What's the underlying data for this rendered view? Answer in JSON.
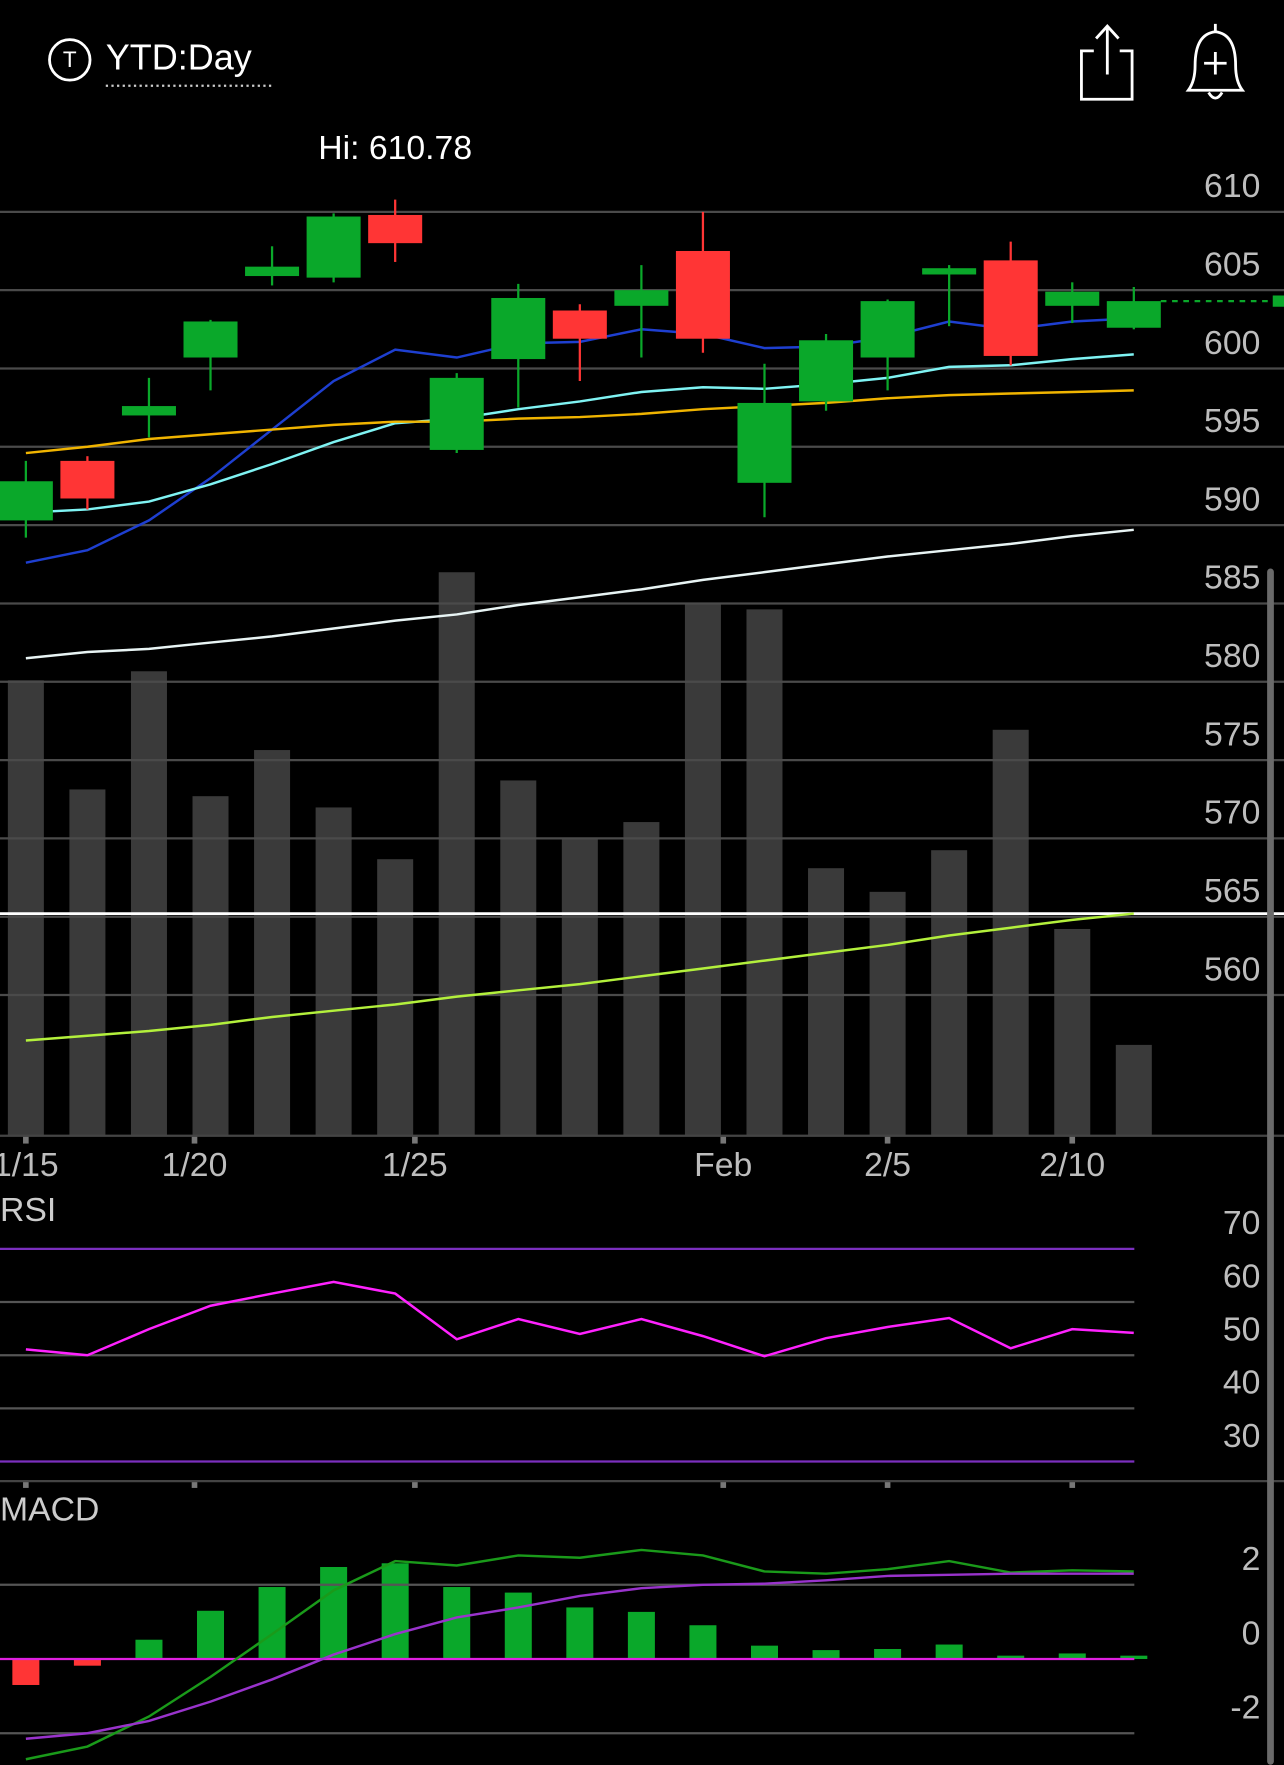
{
  "header": {
    "icon": "T",
    "title": "YTD:Day"
  },
  "chart_data": [
    {
      "type": "candlestick",
      "high_label": "Hi: 610.78",
      "xlim": [
        -0.42,
        20.44
      ],
      "xticks": [
        {
          "value": 0,
          "label": "1/15"
        },
        {
          "value": 2.74,
          "label": "1/20"
        },
        {
          "value": 6.32,
          "label": "1/25"
        },
        {
          "value": 11.33,
          "label": "Feb"
        },
        {
          "value": 14,
          "label": "2/5"
        },
        {
          "value": 17,
          "label": "2/10"
        }
      ],
      "ylim": [
        551,
        613.5
      ],
      "yticks": [
        560,
        565,
        570,
        575,
        580,
        585,
        590,
        595,
        600,
        605,
        610
      ],
      "grid": true,
      "up_color": "#0aa82a",
      "down_color": "#ff3535",
      "candles": {
        "open": [
          590.3,
          594.1,
          597.0,
          600.7,
          605.9,
          605.8,
          609.8,
          594.8,
          600.6,
          603.7,
          604.0,
          607.5,
          592.7,
          597.9,
          600.7,
          606.0,
          606.9,
          604.0,
          602.6
        ],
        "high": [
          594.1,
          594.4,
          599.4,
          603.1,
          607.8,
          609.9,
          610.78,
          599.7,
          605.4,
          604.1,
          606.6,
          610.0,
          600.3,
          602.2,
          604.4,
          606.6,
          608.1,
          605.5,
          605.2
        ],
        "low": [
          589.2,
          591.0,
          595.6,
          598.6,
          605.3,
          605.5,
          606.8,
          594.6,
          597.5,
          599.2,
          600.7,
          601.0,
          590.5,
          597.3,
          598.6,
          602.7,
          600.2,
          602.9,
          602.5
        ],
        "close": [
          592.8,
          591.7,
          597.6,
          603.0,
          606.5,
          609.7,
          608.0,
          599.4,
          604.5,
          601.9,
          605.0,
          601.9,
          597.8,
          601.8,
          604.3,
          606.4,
          600.8,
          604.9,
          604.3
        ]
      },
      "series": [
        {
          "color": "#1e3fd0",
          "values": [
            587.6,
            588.4,
            590.3,
            593.0,
            596.1,
            599.2,
            601.2,
            600.7,
            601.6,
            601.7,
            602.5,
            602.2,
            601.3,
            601.4,
            602.0,
            603.0,
            602.5,
            603.0,
            603.2
          ]
        },
        {
          "color": "#7ff3f3",
          "values": [
            590.8,
            591.0,
            591.5,
            592.6,
            593.9,
            595.3,
            596.5,
            596.8,
            597.4,
            597.9,
            598.5,
            598.8,
            598.7,
            599.0,
            599.4,
            600.1,
            600.2,
            600.6,
            600.9
          ]
        },
        {
          "color": "#f0b400",
          "values": [
            594.6,
            595.0,
            595.5,
            595.8,
            596.1,
            596.4,
            596.6,
            596.6,
            596.8,
            596.9,
            597.1,
            597.4,
            597.6,
            597.8,
            598.1,
            598.3,
            598.4,
            598.5,
            598.6
          ]
        },
        {
          "color": "#e8f4f4",
          "values": [
            581.5,
            581.9,
            582.1,
            582.5,
            582.9,
            583.4,
            583.9,
            584.3,
            584.9,
            585.4,
            585.9,
            586.5,
            587.0,
            587.5,
            588.0,
            588.4,
            588.8,
            589.3,
            589.7
          ]
        },
        {
          "color": "#b3f03c",
          "values": [
            557.1,
            557.4,
            557.7,
            558.1,
            558.6,
            559.0,
            559.4,
            559.9,
            560.3,
            560.7,
            561.2,
            561.7,
            562.2,
            562.7,
            563.2,
            563.8,
            564.3,
            564.8,
            565.2
          ]
        }
      ],
      "volume": {
        "color": "#3a3a3a",
        "lim": [
          0,
          870
        ],
        "values": [
          405,
          308,
          413,
          302,
          343,
          292,
          246,
          501,
          316,
          264,
          279,
          474,
          468,
          238,
          217,
          254,
          361,
          184,
          81
        ]
      },
      "last_price": 604.3,
      "alert_line": 565.2
    },
    {
      "type": "line",
      "title": "RSI",
      "ylim": [
        26.3,
        80.5
      ],
      "yticks": [
        30,
        40,
        50,
        60,
        70
      ],
      "grid_colors": [
        "#7b2fbe",
        "#555555",
        "#555555",
        "#555555",
        "#7b2fbe"
      ],
      "series": [
        {
          "color": "#ff22ff",
          "values": [
            51.1,
            50.0,
            54.9,
            59.3,
            61.6,
            63.8,
            61.6,
            53.0,
            56.8,
            54.0,
            56.8,
            53.6,
            49.8,
            53.2,
            55.3,
            57.0,
            51.3,
            54.9,
            54.2
          ]
        }
      ]
    },
    {
      "type": "macd",
      "title": "MACD",
      "ylim": [
        -2.85,
        4.52
      ],
      "yticks": [
        -2,
        0,
        2
      ],
      "grid_colors": [
        "#555555",
        "#e020e0",
        "#555555"
      ],
      "histogram": {
        "positive_color": "#0aa82a",
        "negative_color": "#ff3535",
        "values": [
          -0.7,
          -0.18,
          0.52,
          1.3,
          1.94,
          2.48,
          2.58,
          1.94,
          1.79,
          1.39,
          1.27,
          0.91,
          0.36,
          0.24,
          0.27,
          0.39,
          0.09,
          0.15,
          0.09
        ]
      },
      "series": [
        {
          "color": "#1a9a1a",
          "values": [
            -2.7,
            -2.36,
            -1.55,
            -0.48,
            0.67,
            1.85,
            2.64,
            2.52,
            2.79,
            2.73,
            2.94,
            2.79,
            2.36,
            2.3,
            2.42,
            2.64,
            2.33,
            2.39,
            2.36
          ]
        },
        {
          "color": "#9933cc",
          "values": [
            -2.15,
            -2.0,
            -1.67,
            -1.15,
            -0.55,
            0.12,
            0.67,
            1.12,
            1.39,
            1.7,
            1.91,
            2.0,
            2.03,
            2.12,
            2.24,
            2.27,
            2.3,
            2.3,
            2.3
          ]
        }
      ]
    }
  ]
}
